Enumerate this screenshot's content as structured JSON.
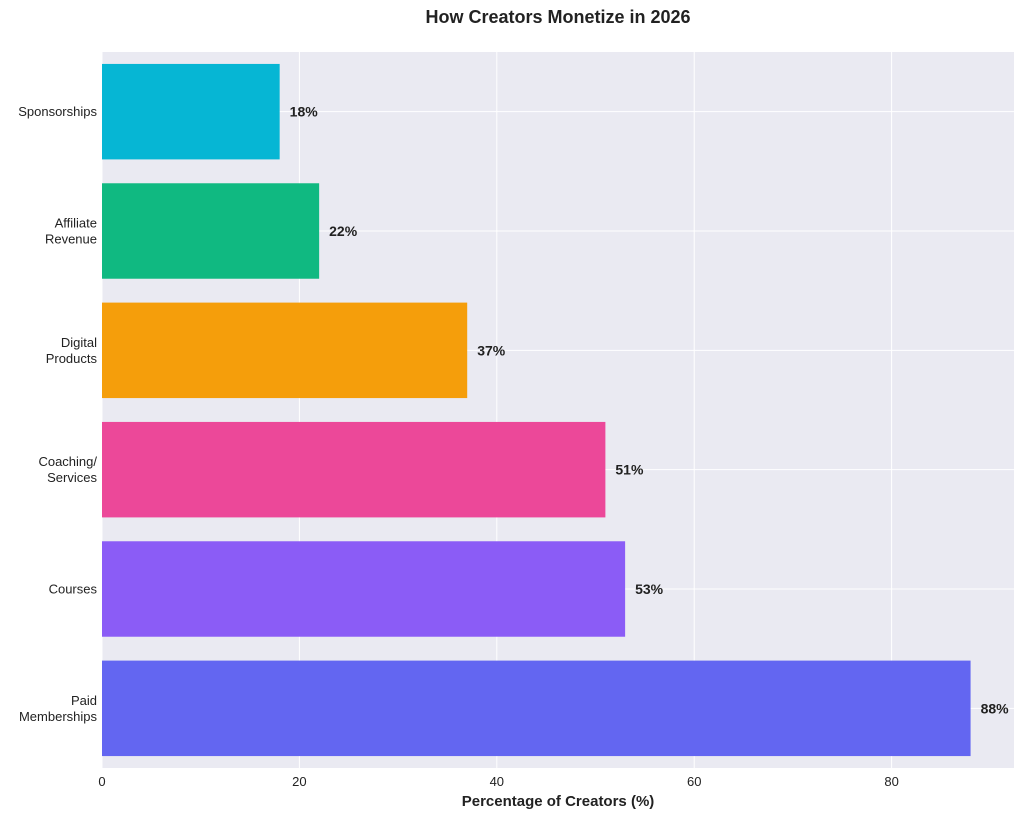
{
  "chart_data": {
    "type": "bar",
    "orientation": "horizontal",
    "title": "How Creators Monetize in 2026",
    "xlabel": "Percentage of Creators (%)",
    "ylabel": "",
    "xlim": [
      0,
      92.4
    ],
    "xticks": [
      0,
      20,
      40,
      60,
      80
    ],
    "grid": true,
    "categories": [
      "Paid\nMemberships",
      "Courses",
      "Coaching/\nServices",
      "Digital\nProducts",
      "Affiliate\nRevenue",
      "Sponsorships"
    ],
    "values": [
      88,
      53,
      51,
      37,
      22,
      18
    ],
    "value_labels": [
      "88%",
      "53%",
      "51%",
      "37%",
      "22%",
      "18%"
    ],
    "colors": [
      "#6366f1",
      "#8b5cf6",
      "#ec4899",
      "#f59e0b",
      "#10b981",
      "#06b6d4"
    ]
  }
}
